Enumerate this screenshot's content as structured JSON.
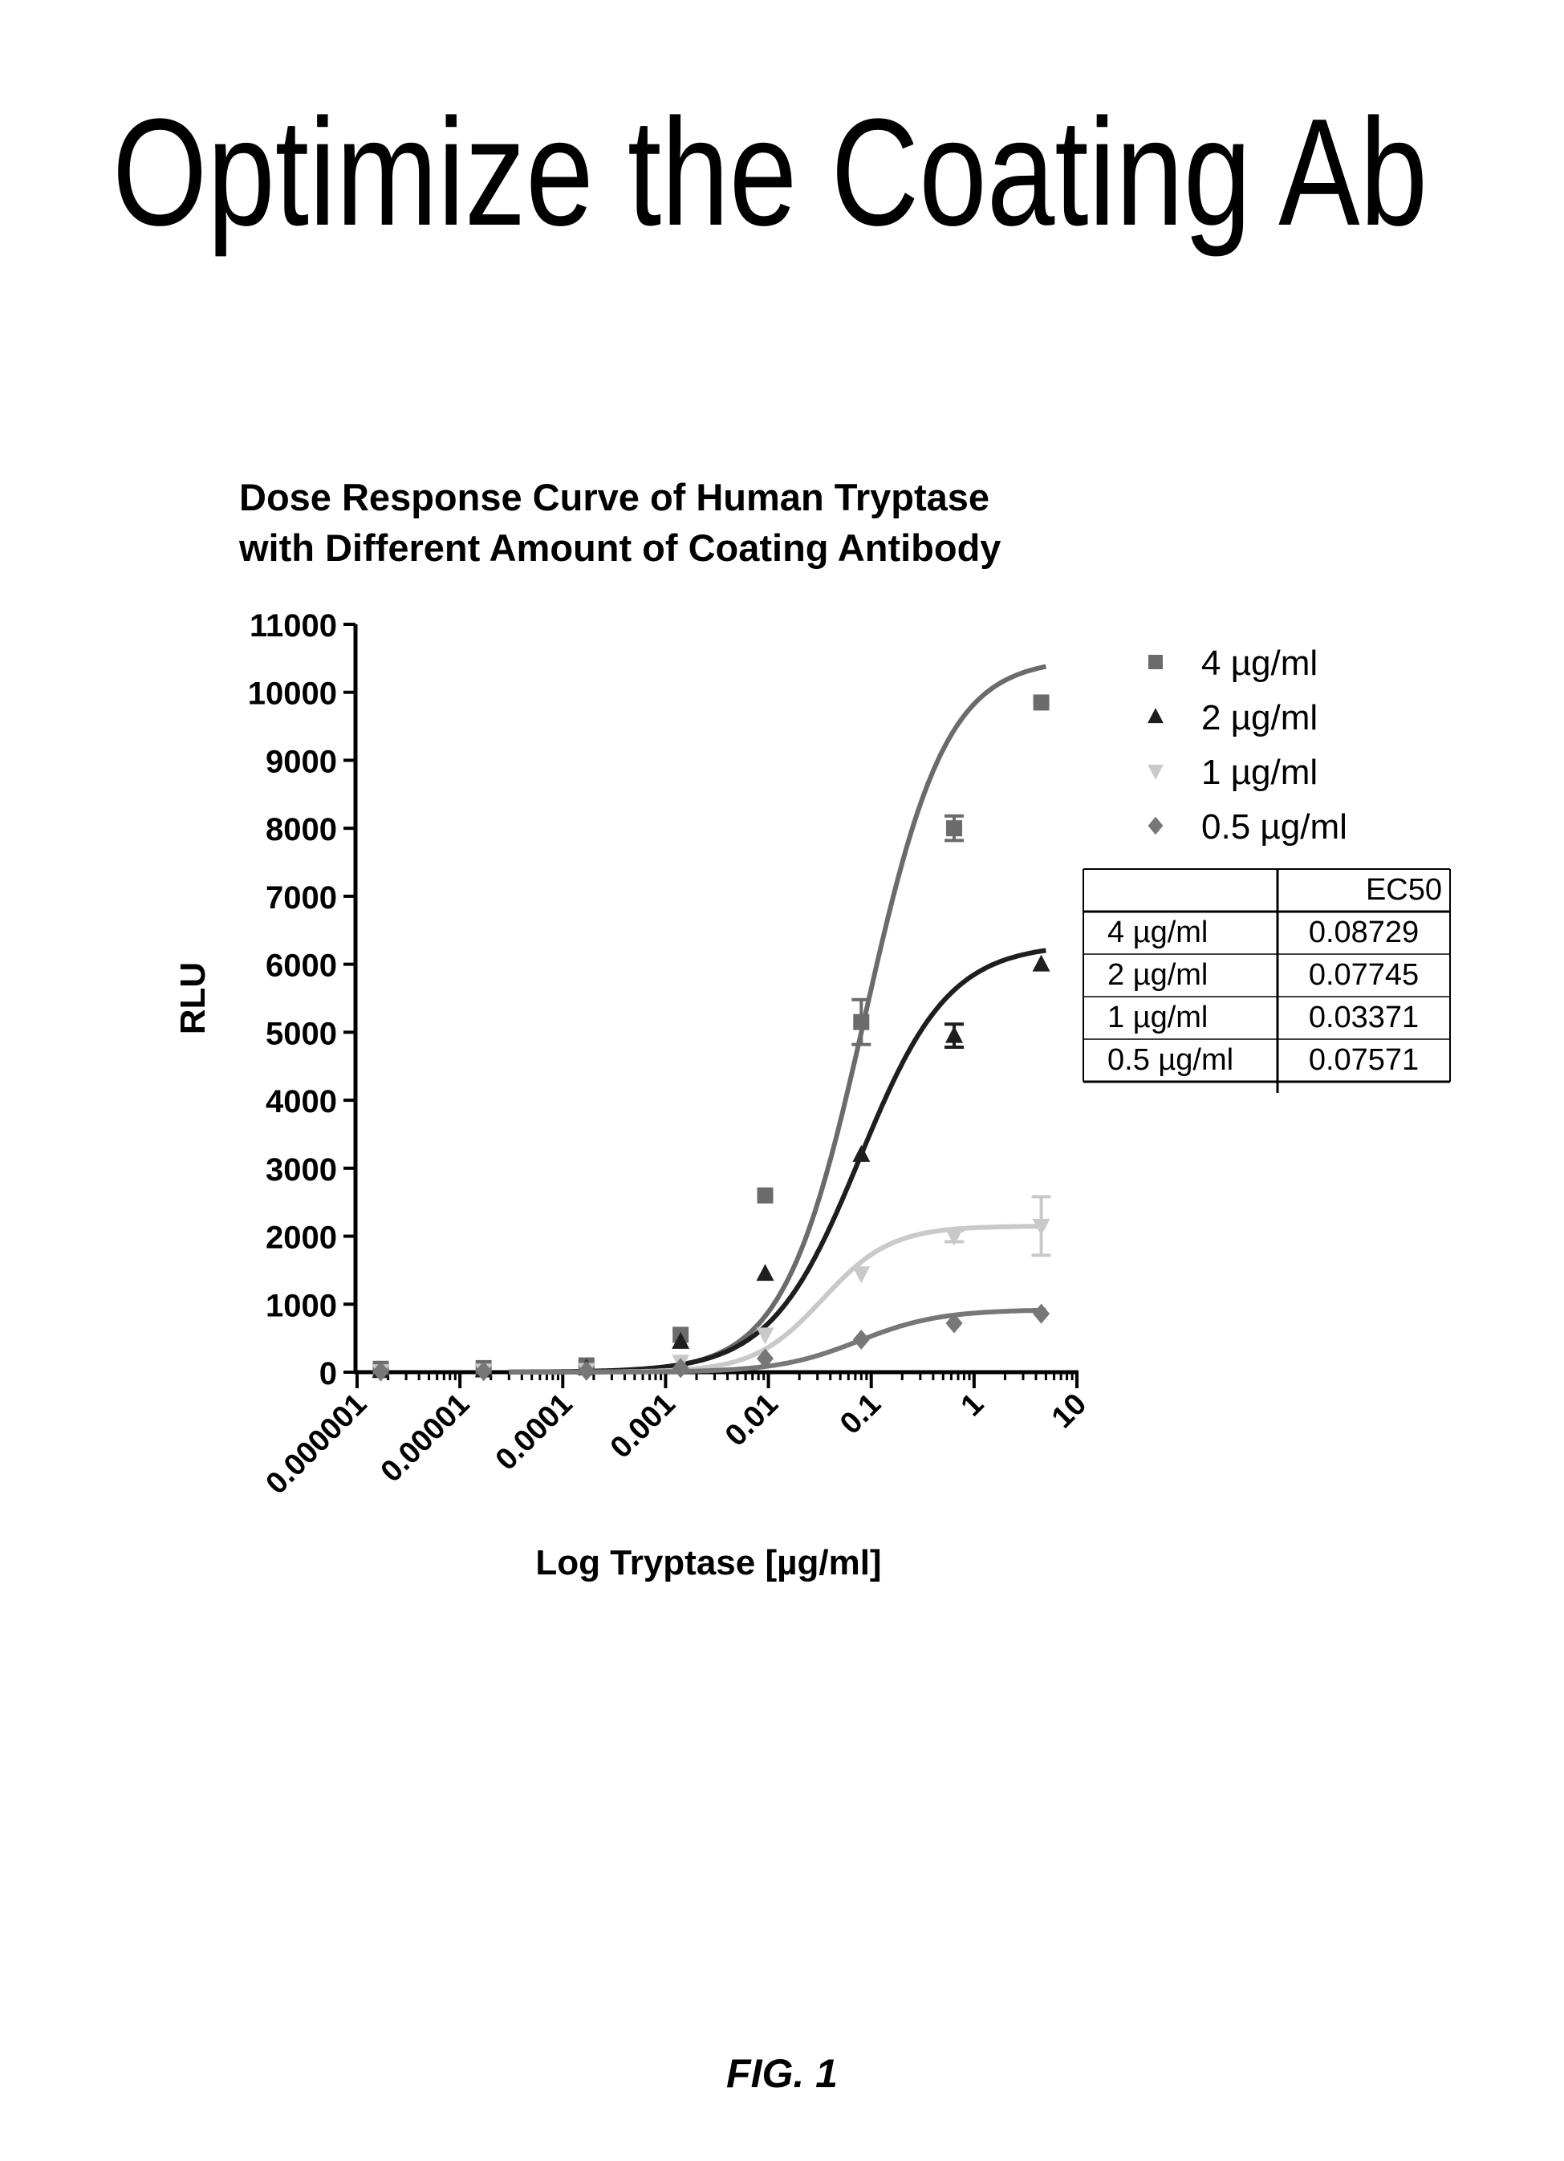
{
  "page": {
    "heading": "Optimize the Coating Ab",
    "caption": "FIG. 1"
  },
  "chart_data": {
    "type": "scatter",
    "title_lines": [
      "Dose Response Curve of Human Tryptase",
      "with Different Amount of Coating Antibody"
    ],
    "xlabel": "Log Tryptase [µg/ml]",
    "ylabel": "RLU",
    "x_scale": "log",
    "xlim": [
      1e-06,
      10
    ],
    "ylim": [
      0,
      11000
    ],
    "x_ticks": [
      {
        "value": 1e-06,
        "label": "0.000001"
      },
      {
        "value": 1e-05,
        "label": "0.00001"
      },
      {
        "value": 0.0001,
        "label": "0.0001"
      },
      {
        "value": 0.001,
        "label": "0.001"
      },
      {
        "value": 0.01,
        "label": "0.01"
      },
      {
        "value": 0.1,
        "label": "0.1"
      },
      {
        "value": 1,
        "label": "1"
      },
      {
        "value": 10,
        "label": "10"
      }
    ],
    "y_ticks": [
      0,
      1000,
      2000,
      3000,
      4000,
      5000,
      6000,
      7000,
      8000,
      9000,
      10000,
      11000
    ],
    "legend_position": "top-right",
    "series": [
      {
        "name": "4 µg/ml",
        "marker": "square",
        "color": "#6b6b6b",
        "ec50": "0.08729",
        "top": 10500,
        "hill": 1.1,
        "points": [
          {
            "x": 1.7e-06,
            "y": 50,
            "err": 0
          },
          {
            "x": 1.7e-05,
            "y": 60,
            "err": 0
          },
          {
            "x": 0.00017,
            "y": 100,
            "err": 0
          },
          {
            "x": 0.0014,
            "y": 550,
            "err": 0
          },
          {
            "x": 0.0093,
            "y": 2600,
            "err": 0
          },
          {
            "x": 0.08,
            "y": 5150,
            "err": 330
          },
          {
            "x": 0.64,
            "y": 8000,
            "err": 180
          },
          {
            "x": 4.5,
            "y": 9850,
            "err": 0
          }
        ]
      },
      {
        "name": "2 µg/ml",
        "marker": "triangle",
        "color": "#1e1e1e",
        "ec50": "0.07745",
        "top": 6300,
        "hill": 1.0,
        "points": [
          {
            "x": 1.7e-06,
            "y": 20,
            "err": 0
          },
          {
            "x": 1.7e-05,
            "y": 30,
            "err": 0
          },
          {
            "x": 0.00017,
            "y": 60,
            "err": 0
          },
          {
            "x": 0.0014,
            "y": 450,
            "err": 0
          },
          {
            "x": 0.0093,
            "y": 1450,
            "err": 0
          },
          {
            "x": 0.08,
            "y": 3200,
            "err": 0
          },
          {
            "x": 0.64,
            "y": 4950,
            "err": 170
          },
          {
            "x": 4.5,
            "y": 6000,
            "err": 0
          }
        ]
      },
      {
        "name": "1 µg/ml",
        "marker": "inverted-triangle",
        "color": "#c9c9c9",
        "ec50": "0.03371",
        "top": 2150,
        "hill": 1.3,
        "points": [
          {
            "x": 1.7e-06,
            "y": 10,
            "err": 0
          },
          {
            "x": 1.7e-05,
            "y": 20,
            "err": 0
          },
          {
            "x": 0.00017,
            "y": 30,
            "err": 0
          },
          {
            "x": 0.0014,
            "y": 150,
            "err": 0
          },
          {
            "x": 0.0093,
            "y": 550,
            "err": 0
          },
          {
            "x": 0.08,
            "y": 1450,
            "err": 0
          },
          {
            "x": 0.64,
            "y": 2000,
            "err": 80
          },
          {
            "x": 4.5,
            "y": 2150,
            "err": 430
          }
        ]
      },
      {
        "name": "0.5 µg/ml",
        "marker": "diamond",
        "color": "#777777",
        "ec50": "0.07571",
        "top": 920,
        "hill": 1.1,
        "points": [
          {
            "x": 1.7e-06,
            "y": 10,
            "err": 0
          },
          {
            "x": 1.7e-05,
            "y": 15,
            "err": 0
          },
          {
            "x": 0.00017,
            "y": 20,
            "err": 0
          },
          {
            "x": 0.0014,
            "y": 60,
            "err": 0
          },
          {
            "x": 0.0093,
            "y": 200,
            "err": 0
          },
          {
            "x": 0.08,
            "y": 480,
            "err": 0
          },
          {
            "x": 0.64,
            "y": 720,
            "err": 0
          },
          {
            "x": 4.5,
            "y": 860,
            "err": 0
          }
        ]
      }
    ],
    "ec50_table": {
      "header": [
        "",
        "EC50"
      ],
      "rows": [
        [
          "4 µg/ml",
          "0.08729"
        ],
        [
          "2 µg/ml",
          "0.07745"
        ],
        [
          "1 µg/ml",
          "0.03371"
        ],
        [
          "0.5 µg/ml",
          "0.07571"
        ]
      ]
    }
  }
}
